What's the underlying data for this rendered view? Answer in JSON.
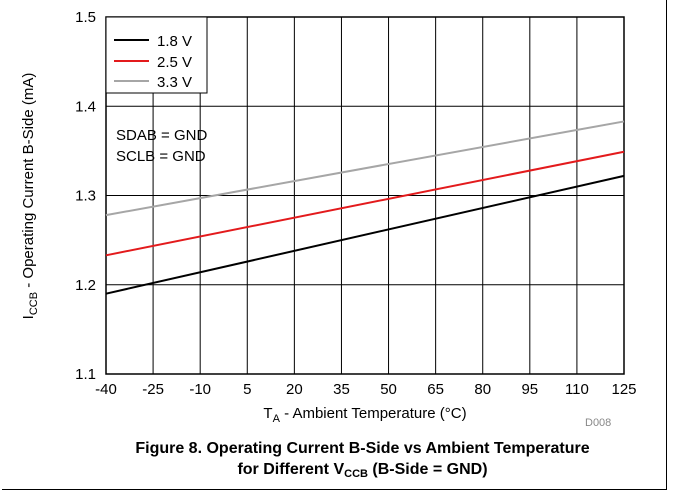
{
  "chart_data": {
    "type": "line",
    "x": [
      -40,
      125
    ],
    "xticks": [
      "-40",
      "-25",
      "-10",
      "5",
      "20",
      "35",
      "50",
      "65",
      "80",
      "95",
      "110",
      "125"
    ],
    "yticks": [
      "1.1",
      "1.2",
      "1.3",
      "1.4",
      "1.5"
    ],
    "xlim": [
      -40,
      125
    ],
    "ylim": [
      1.1,
      1.5
    ],
    "xlabel": {
      "main": "T",
      "sub": "A",
      "rest": " - Ambient Temperature (°C)"
    },
    "ylabel": {
      "main": "I",
      "sub": "CCB",
      "rest": " - Operating Current B-Side (mA)"
    },
    "grid": true,
    "legend_position": "top-left",
    "series": [
      {
        "name": "1.8 V",
        "color": "#000000",
        "values": [
          1.19,
          1.322
        ]
      },
      {
        "name": "2.5 V",
        "color": "#e31a1c",
        "values": [
          1.233,
          1.349
        ]
      },
      {
        "name": "3.3 V",
        "color": "#a6a6a6",
        "values": [
          1.278,
          1.383
        ]
      }
    ],
    "annotations": [
      "SDAB = GND",
      "SCLB = GND"
    ],
    "figure_code": "D008"
  },
  "caption": {
    "line1": "Figure 8. Operating Current B-Side vs Ambient Temperature",
    "line2_pre": "for Different V",
    "line2_sub": "CCB",
    "line2_post": " (B-Side = GND)"
  }
}
